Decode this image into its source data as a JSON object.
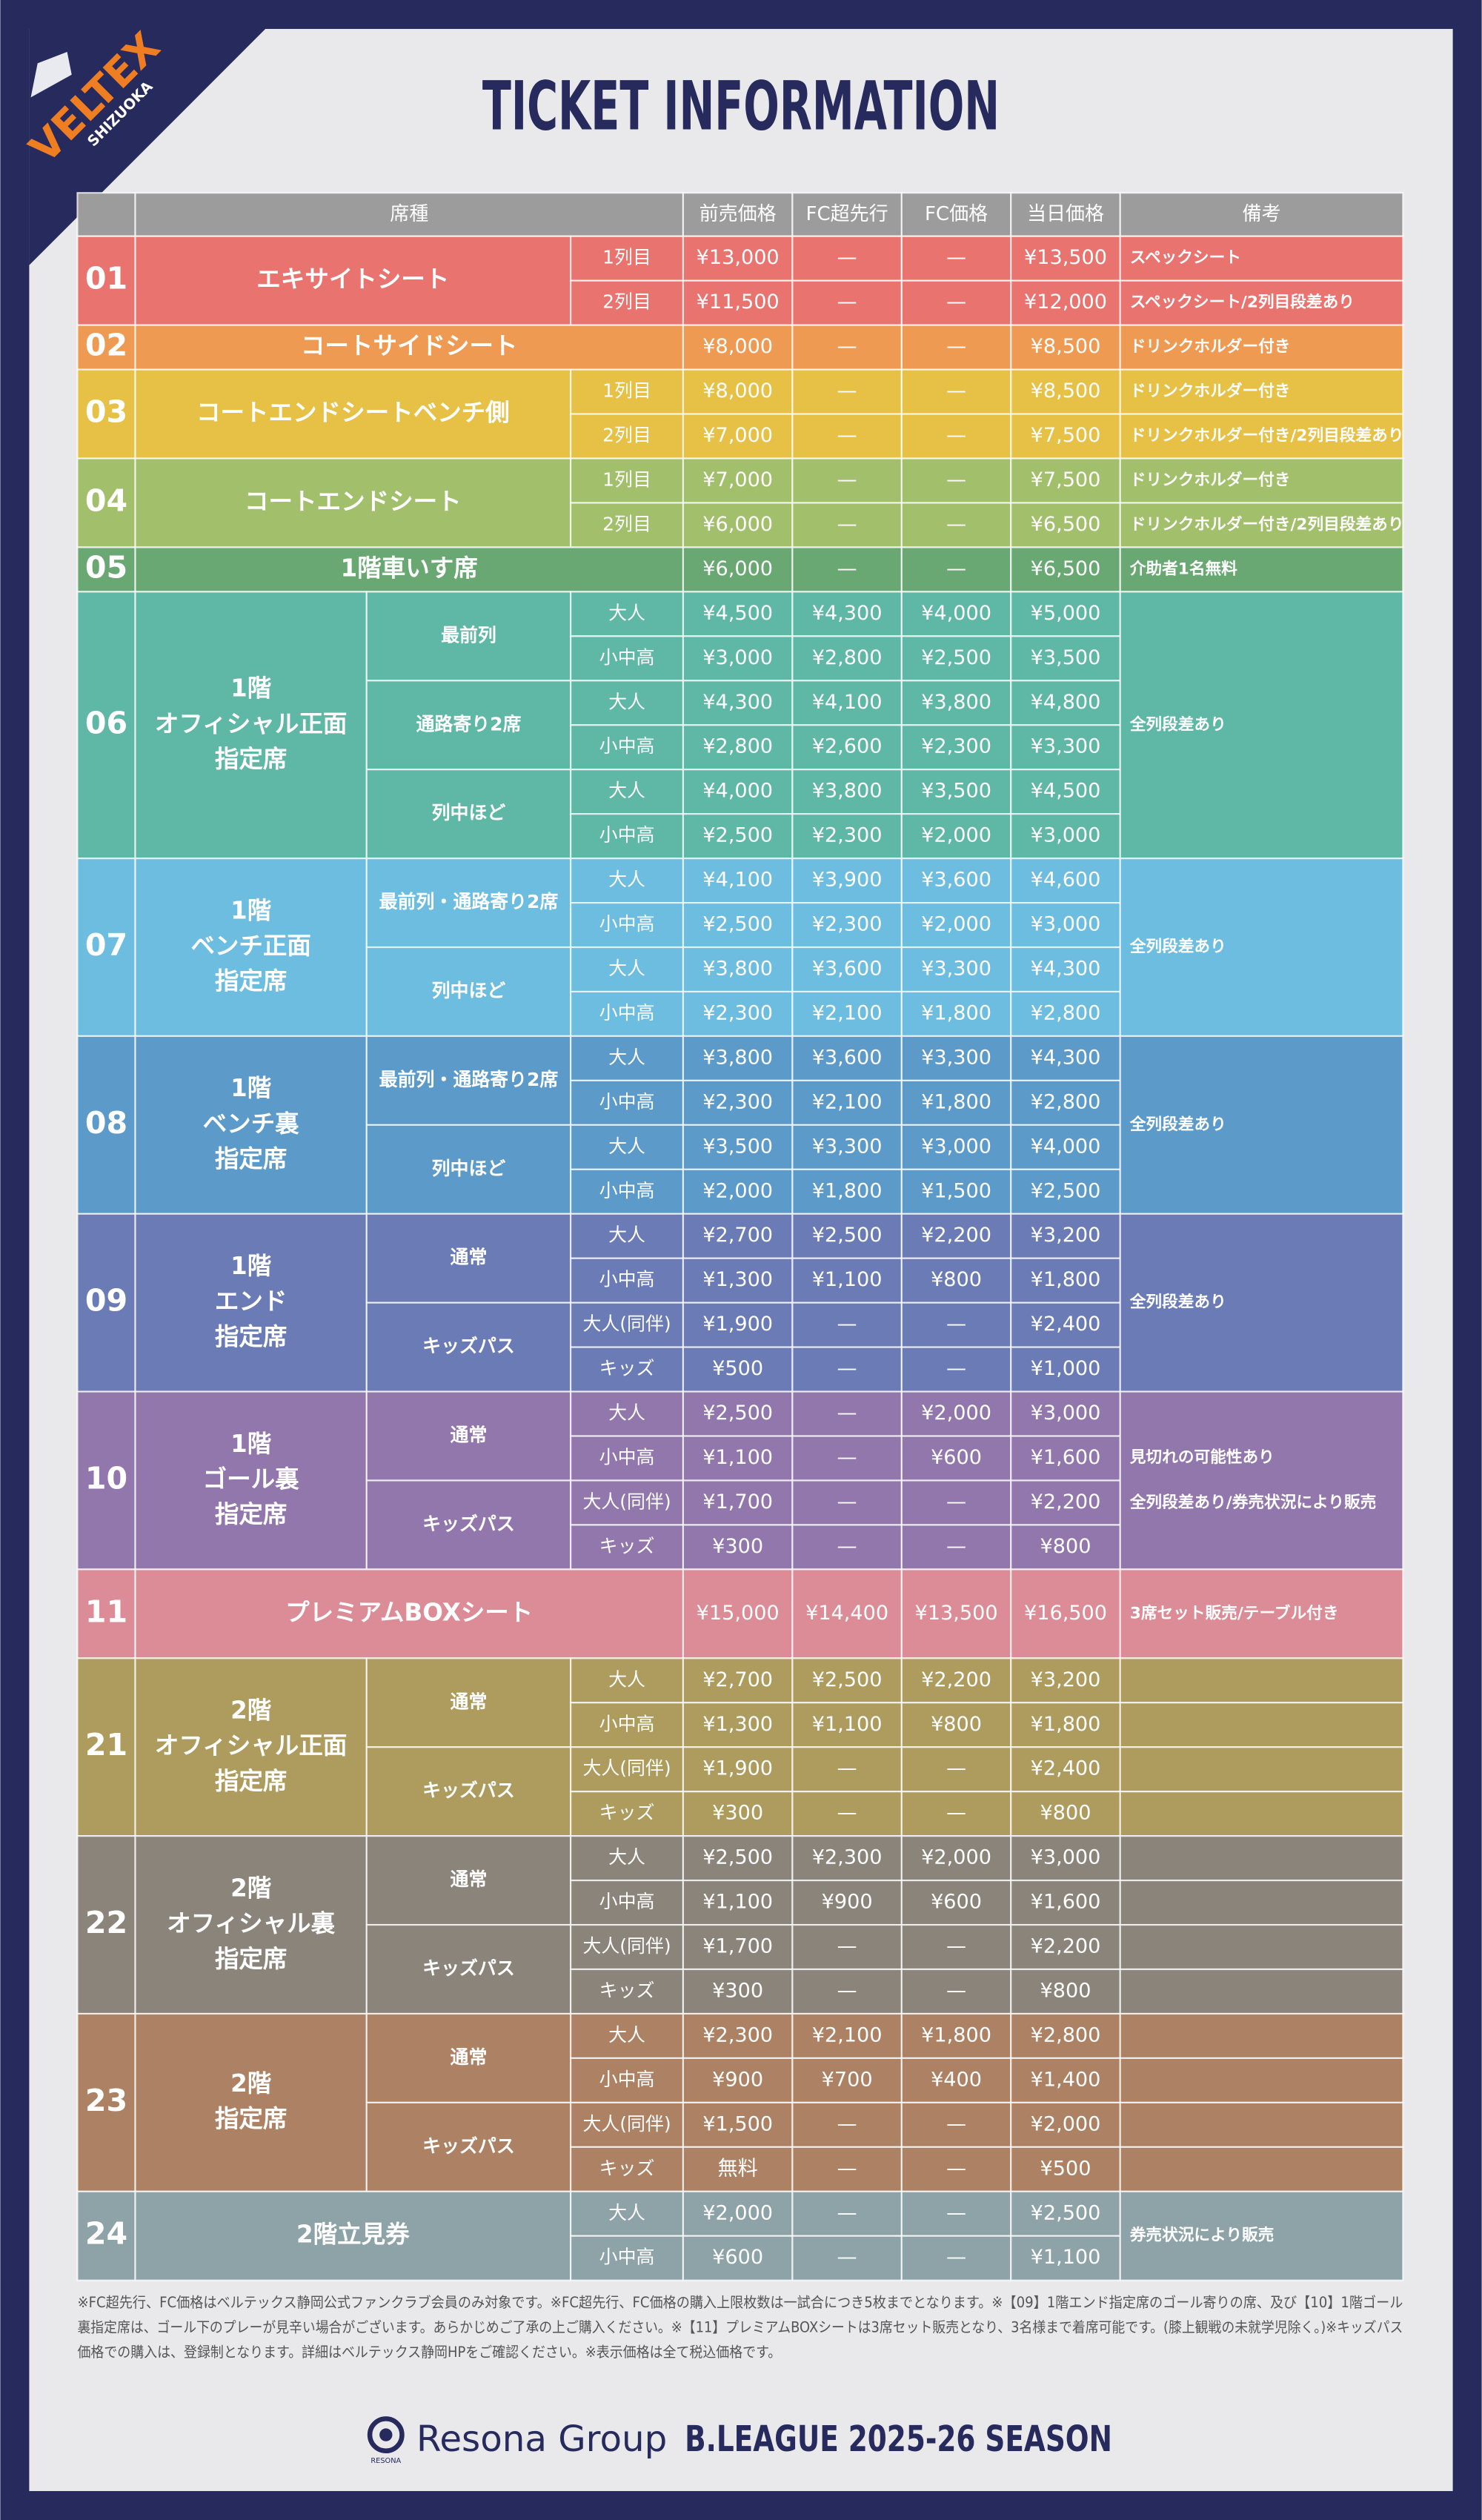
{
  "logo": {
    "name": "VELTEX",
    "sub": "SHIZUOKA"
  },
  "title": "TICKET INFORMATION",
  "header": [
    "席種",
    "前売価格",
    "FC超先行",
    "FC価格",
    "当日価格",
    "備考"
  ],
  "groups": [
    {
      "no": "01",
      "name": [
        "エキサイトシート"
      ],
      "color": "#e9736f",
      "rows": [
        {
          "label": "1列目",
          "prices": [
            "¥13,000",
            "—",
            "—",
            "¥13,500"
          ],
          "note": "スペックシート"
        },
        {
          "label": "2列目",
          "prices": [
            "¥11,500",
            "—",
            "—",
            "¥12,000"
          ],
          "note": "スペックシート/2列目段差あり"
        }
      ]
    },
    {
      "no": "02",
      "name": [
        "コートサイドシート"
      ],
      "color": "#ef9a52",
      "rows": [
        {
          "prices": [
            "¥8,000",
            "—",
            "—",
            "¥8,500"
          ],
          "note": "ドリンクホルダー付き"
        }
      ]
    },
    {
      "no": "03",
      "name": [
        "コートエンドシートベンチ側"
      ],
      "color": "#e6c146",
      "rows": [
        {
          "label": "1列目",
          "prices": [
            "¥8,000",
            "—",
            "—",
            "¥8,500"
          ],
          "note": "ドリンクホルダー付き"
        },
        {
          "label": "2列目",
          "prices": [
            "¥7,000",
            "—",
            "—",
            "¥7,500"
          ],
          "note": "ドリンクホルダー付き/2列目段差あり"
        }
      ]
    },
    {
      "no": "04",
      "name": [
        "コートエンドシート"
      ],
      "color": "#a2bf6b",
      "rows": [
        {
          "label": "1列目",
          "prices": [
            "¥7,000",
            "—",
            "—",
            "¥7,500"
          ],
          "note": "ドリンクホルダー付き"
        },
        {
          "label": "2列目",
          "prices": [
            "¥6,000",
            "—",
            "—",
            "¥6,500"
          ],
          "note": "ドリンクホルダー付き/2列目段差あり"
        }
      ]
    },
    {
      "no": "05",
      "name": [
        "1階車いす席"
      ],
      "color": "#6aa873",
      "rows": [
        {
          "prices": [
            "¥6,000",
            "—",
            "—",
            "¥6,500"
          ],
          "note": "介助者1名無料"
        }
      ]
    },
    {
      "no": "06",
      "name": [
        "1階",
        "オフィシャル正面",
        "指定席"
      ],
      "color": "#5fb7a5",
      "note": [
        "全列段差あり"
      ],
      "sections": [
        {
          "label": "最前列",
          "rows": [
            {
              "label": "大人",
              "prices": [
                "¥4,500",
                "¥4,300",
                "¥4,000",
                "¥5,000"
              ]
            },
            {
              "label": "小中高",
              "prices": [
                "¥3,000",
                "¥2,800",
                "¥2,500",
                "¥3,500"
              ]
            }
          ]
        },
        {
          "label": "通路寄り2席",
          "rows": [
            {
              "label": "大人",
              "prices": [
                "¥4,300",
                "¥4,100",
                "¥3,800",
                "¥4,800"
              ]
            },
            {
              "label": "小中高",
              "prices": [
                "¥2,800",
                "¥2,600",
                "¥2,300",
                "¥3,300"
              ]
            }
          ]
        },
        {
          "label": "列中ほど",
          "rows": [
            {
              "label": "大人",
              "prices": [
                "¥4,000",
                "¥3,800",
                "¥3,500",
                "¥4,500"
              ]
            },
            {
              "label": "小中高",
              "prices": [
                "¥2,500",
                "¥2,300",
                "¥2,000",
                "¥3,000"
              ]
            }
          ]
        }
      ]
    },
    {
      "no": "07",
      "name": [
        "1階",
        "ベンチ正面",
        "指定席"
      ],
      "color": "#6cbde0",
      "note": [
        "全列段差あり"
      ],
      "sections": [
        {
          "label": "最前列・通路寄り2席",
          "rows": [
            {
              "label": "大人",
              "prices": [
                "¥4,100",
                "¥3,900",
                "¥3,600",
                "¥4,600"
              ]
            },
            {
              "label": "小中高",
              "prices": [
                "¥2,500",
                "¥2,300",
                "¥2,000",
                "¥3,000"
              ]
            }
          ]
        },
        {
          "label": "列中ほど",
          "rows": [
            {
              "label": "大人",
              "prices": [
                "¥3,800",
                "¥3,600",
                "¥3,300",
                "¥4,300"
              ]
            },
            {
              "label": "小中高",
              "prices": [
                "¥2,300",
                "¥2,100",
                "¥1,800",
                "¥2,800"
              ]
            }
          ]
        }
      ]
    },
    {
      "no": "08",
      "name": [
        "1階",
        "ベンチ裏",
        "指定席"
      ],
      "color": "#5b9ac9",
      "note": [
        "全列段差あり"
      ],
      "sections": [
        {
          "label": "最前列・通路寄り2席",
          "rows": [
            {
              "label": "大人",
              "prices": [
                "¥3,800",
                "¥3,600",
                "¥3,300",
                "¥4,300"
              ]
            },
            {
              "label": "小中高",
              "prices": [
                "¥2,300",
                "¥2,100",
                "¥1,800",
                "¥2,800"
              ]
            }
          ]
        },
        {
          "label": "列中ほど",
          "rows": [
            {
              "label": "大人",
              "prices": [
                "¥3,500",
                "¥3,300",
                "¥3,000",
                "¥4,000"
              ]
            },
            {
              "label": "小中高",
              "prices": [
                "¥2,000",
                "¥1,800",
                "¥1,500",
                "¥2,500"
              ]
            }
          ]
        }
      ]
    },
    {
      "no": "09",
      "name": [
        "1階",
        "エンド",
        "指定席"
      ],
      "color": "#6a7bb6",
      "note": [
        "全列段差あり"
      ],
      "sections": [
        {
          "label": "通常",
          "rows": [
            {
              "label": "大人",
              "prices": [
                "¥2,700",
                "¥2,500",
                "¥2,200",
                "¥3,200"
              ]
            },
            {
              "label": "小中高",
              "prices": [
                "¥1,300",
                "¥1,100",
                "¥800",
                "¥1,800"
              ]
            }
          ]
        },
        {
          "label": "キッズパス",
          "rows": [
            {
              "label": "大人(同伴)",
              "prices": [
                "¥1,900",
                "—",
                "—",
                "¥2,400"
              ]
            },
            {
              "label": "キッズ",
              "prices": [
                "¥500",
                "—",
                "—",
                "¥1,000"
              ]
            }
          ]
        }
      ]
    },
    {
      "no": "10",
      "name": [
        "1階",
        "ゴール裏",
        "指定席"
      ],
      "color": "#9277ad",
      "note": [
        "見切れの可能性あり",
        "全列段差あり/券売状況により販売"
      ],
      "sections": [
        {
          "label": "通常",
          "rows": [
            {
              "label": "大人",
              "prices": [
                "¥2,500",
                "—",
                "¥2,000",
                "¥3,000"
              ]
            },
            {
              "label": "小中高",
              "prices": [
                "¥1,100",
                "—",
                "¥600",
                "¥1,600"
              ]
            }
          ]
        },
        {
          "label": "キッズパス",
          "rows": [
            {
              "label": "大人(同伴)",
              "prices": [
                "¥1,700",
                "—",
                "—",
                "¥2,200"
              ]
            },
            {
              "label": "キッズ",
              "prices": [
                "¥300",
                "—",
                "—",
                "¥800"
              ]
            }
          ]
        }
      ]
    },
    {
      "no": "11",
      "name": [
        "プレミアムBOXシート"
      ],
      "color": "#dc8c96",
      "rows": [
        {
          "prices": [
            "¥15,000",
            "¥14,400",
            "¥13,500",
            "¥16,500"
          ],
          "note": "3席セット販売/テーブル付き"
        }
      ]
    },
    {
      "no": "21",
      "name": [
        "2階",
        "オフィシャル正面",
        "指定席"
      ],
      "color": "#ad9c5e",
      "sections": [
        {
          "label": "通常",
          "rows": [
            {
              "label": "大人",
              "prices": [
                "¥2,700",
                "¥2,500",
                "¥2,200",
                "¥3,200"
              ]
            },
            {
              "label": "小中高",
              "prices": [
                "¥1,300",
                "¥1,100",
                "¥800",
                "¥1,800"
              ]
            }
          ]
        },
        {
          "label": "キッズパス",
          "rows": [
            {
              "label": "大人(同伴)",
              "prices": [
                "¥1,900",
                "—",
                "—",
                "¥2,400"
              ]
            },
            {
              "label": "キッズ",
              "prices": [
                "¥300",
                "—",
                "—",
                "¥800"
              ]
            }
          ]
        }
      ]
    },
    {
      "no": "22",
      "name": [
        "2階",
        "オフィシャル裏",
        "指定席"
      ],
      "color": "#8a847b",
      "sections": [
        {
          "label": "通常",
          "rows": [
            {
              "label": "大人",
              "prices": [
                "¥2,500",
                "¥2,300",
                "¥2,000",
                "¥3,000"
              ]
            },
            {
              "label": "小中高",
              "prices": [
                "¥1,100",
                "¥900",
                "¥600",
                "¥1,600"
              ]
            }
          ]
        },
        {
          "label": "キッズパス",
          "rows": [
            {
              "label": "大人(同伴)",
              "prices": [
                "¥1,700",
                "—",
                "—",
                "¥2,200"
              ]
            },
            {
              "label": "キッズ",
              "prices": [
                "¥300",
                "—",
                "—",
                "¥800"
              ]
            }
          ]
        }
      ]
    },
    {
      "no": "23",
      "name": [
        "2階",
        "指定席"
      ],
      "color": "#ad8264",
      "sections": [
        {
          "label": "通常",
          "rows": [
            {
              "label": "大人",
              "prices": [
                "¥2,300",
                "¥2,100",
                "¥1,800",
                "¥2,800"
              ]
            },
            {
              "label": "小中高",
              "prices": [
                "¥900",
                "¥700",
                "¥400",
                "¥1,400"
              ]
            }
          ]
        },
        {
          "label": "キッズパス",
          "rows": [
            {
              "label": "大人(同伴)",
              "prices": [
                "¥1,500",
                "—",
                "—",
                "¥2,000"
              ]
            },
            {
              "label": "キッズ",
              "prices": [
                "無料",
                "—",
                "—",
                "¥500"
              ]
            }
          ]
        }
      ]
    },
    {
      "no": "24",
      "name": [
        "2階立見券"
      ],
      "color": "#8ea3a7",
      "note": [
        "券売状況により販売"
      ],
      "rows": [
        {
          "label": "大人",
          "prices": [
            "¥2,000",
            "—",
            "—",
            "¥2,500"
          ]
        },
        {
          "label": "小中高",
          "prices": [
            "¥600",
            "—",
            "—",
            "¥1,100"
          ]
        }
      ]
    }
  ],
  "footnotes": [
    "※FC超先行、FC価格はベルテックス静岡公式ファンクラブ会員のみ対象です。※FC超先行、FC価格の購入上限枚数は一試合につき5枚までとなります。※【09】1階エンド指定席のゴール寄りの席、及び【10】1階ゴール",
    "裏指定席は、ゴール下のプレーが見辛い場合がございます。あらかじめご了承の上ご購入ください。※【11】プレミアムBOXシートは3席セット販売となり、3名様まで着席可能です。(膝上観戦の未就学児除く。)※キッズパス",
    "価格での購入は、登録制となります。詳細はベルテックス静岡HPをご確認ください。※表示価格は全て税込価格です。"
  ],
  "footer": {
    "sponsor_mark": "RESONA",
    "sponsor": "Resona Group",
    "league": "B.LEAGUE 2025-26 SEASON"
  }
}
